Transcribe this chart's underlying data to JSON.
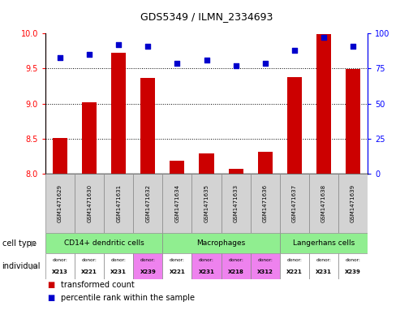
{
  "title": "GDS5349 / ILMN_2334693",
  "samples": [
    "GSM1471629",
    "GSM1471630",
    "GSM1471631",
    "GSM1471632",
    "GSM1471634",
    "GSM1471635",
    "GSM1471633",
    "GSM1471636",
    "GSM1471637",
    "GSM1471638",
    "GSM1471639"
  ],
  "red_values": [
    8.51,
    9.02,
    9.72,
    9.37,
    8.19,
    8.29,
    8.07,
    8.32,
    9.38,
    9.99,
    9.49
  ],
  "blue_values_pct": [
    83,
    85,
    92,
    91,
    79,
    81,
    77,
    79,
    88,
    97,
    91
  ],
  "ylim_left": [
    8.0,
    10.0
  ],
  "ylim_right": [
    0,
    100
  ],
  "yticks_left": [
    8.0,
    8.5,
    9.0,
    9.5,
    10.0
  ],
  "yticks_right": [
    0,
    25,
    50,
    75,
    100
  ],
  "ct_labels": [
    "CD14+ dendritic cells",
    "Macrophages",
    "Langerhans cells"
  ],
  "ct_starts": [
    0,
    4,
    8
  ],
  "ct_ends": [
    4,
    8,
    11
  ],
  "ct_color": "#90EE90",
  "donors": [
    "X213",
    "X221",
    "X231",
    "X239",
    "X221",
    "X231",
    "X218",
    "X312",
    "X221",
    "X231",
    "X239"
  ],
  "donor_colors": [
    "#ffffff",
    "#ffffff",
    "#ffffff",
    "#ee82ee",
    "#ffffff",
    "#ee82ee",
    "#ee82ee",
    "#ee82ee",
    "#ffffff",
    "#ffffff",
    "#ffffff"
  ],
  "bar_color": "#cc0000",
  "dot_color": "#0000cc",
  "bar_base": 8.0,
  "sample_bg": "#d3d3d3",
  "legend_red_label": "transformed count",
  "legend_blue_label": "percentile rank within the sample",
  "label_celltype": "cell type",
  "label_individual": "individual"
}
